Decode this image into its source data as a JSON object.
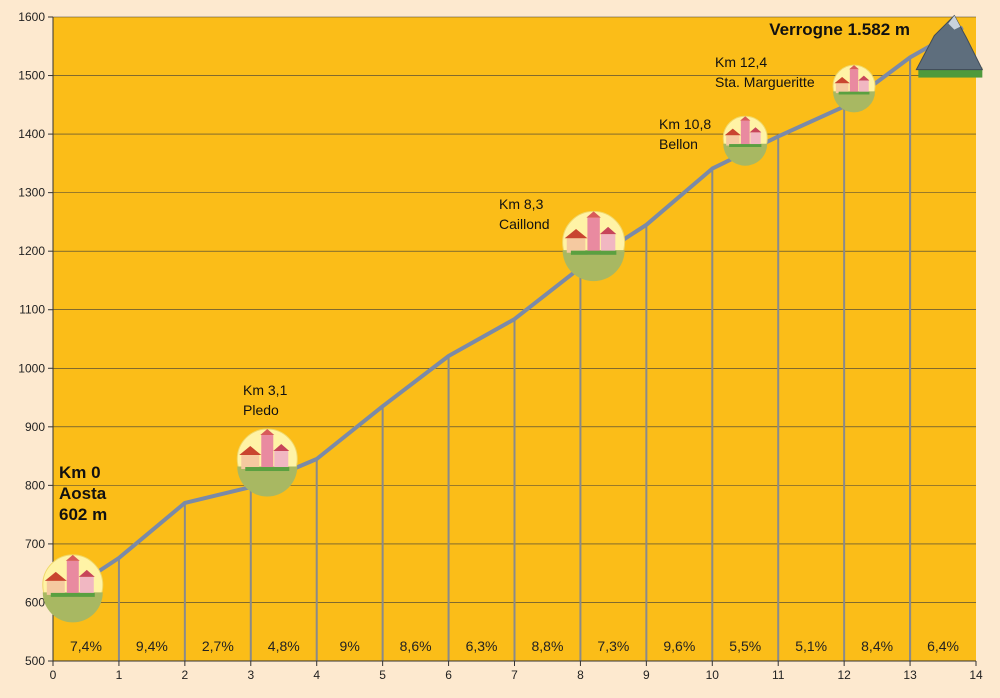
{
  "chart_data": {
    "type": "line",
    "xlim": [
      0,
      14
    ],
    "ylim": [
      500,
      1600
    ],
    "x_ticks": [
      0,
      1,
      2,
      3,
      4,
      5,
      6,
      7,
      8,
      9,
      10,
      11,
      12,
      13,
      14
    ],
    "y_ticks": [
      500,
      600,
      700,
      800,
      900,
      1000,
      1100,
      1200,
      1300,
      1400,
      1500,
      1600
    ],
    "grid": "horizontal",
    "colors": {
      "background": "#fbbd18",
      "line": "#7a8aa8",
      "vlines": "#8a8a8a"
    },
    "profile": [
      {
        "x": 0,
        "y": 602
      },
      {
        "x": 1,
        "y": 676
      },
      {
        "x": 2,
        "y": 770
      },
      {
        "x": 3,
        "y": 797
      },
      {
        "x": 4,
        "y": 845
      },
      {
        "x": 5,
        "y": 935
      },
      {
        "x": 6,
        "y": 1021
      },
      {
        "x": 7,
        "y": 1084
      },
      {
        "x": 8,
        "y": 1172
      },
      {
        "x": 9,
        "y": 1245
      },
      {
        "x": 10,
        "y": 1341
      },
      {
        "x": 11,
        "y": 1396
      },
      {
        "x": 12,
        "y": 1447
      },
      {
        "x": 13,
        "y": 1531
      },
      {
        "x": 13.8,
        "y": 1582
      }
    ],
    "segment_gradients": [
      "7,4%",
      "9,4%",
      "2,7%",
      "4,8%",
      "9%",
      "8,6%",
      "6,3%",
      "8,8%",
      "7,3%",
      "9,6%",
      "5,5%",
      "5,1%",
      "8,4%",
      "6,4%"
    ],
    "waypoints": [
      {
        "id": "aosta",
        "lines": [
          "Km 0",
          "Aosta",
          "602 m"
        ],
        "bold": true,
        "x": 0.3,
        "y": 630,
        "icon": "village-icon"
      },
      {
        "id": "pledo",
        "lines": [
          "Km 3,1",
          "Pledo"
        ],
        "bold": false,
        "x": 3.25,
        "y": 845,
        "icon": "village-icon"
      },
      {
        "id": "caillond",
        "lines": [
          "Km 8,3",
          "Caillond"
        ],
        "bold": false,
        "x": 8.2,
        "y": 1215,
        "icon": "village-icon"
      },
      {
        "id": "bellon",
        "lines": [
          "Km 10,8",
          "Bellon"
        ],
        "bold": false,
        "x": 10.5,
        "y": 1393,
        "icon": "village-icon"
      },
      {
        "id": "marguerite",
        "lines": [
          "Km 12,4",
          "Sta. Margueritte"
        ],
        "bold": false,
        "x": 12.15,
        "y": 1482,
        "icon": "village-icon"
      },
      {
        "id": "verrogne",
        "lines": [
          "Verrogne 1.582 m"
        ],
        "bold": true,
        "x": 13.5,
        "y": 1570,
        "icon": "mountain-icon"
      }
    ]
  }
}
